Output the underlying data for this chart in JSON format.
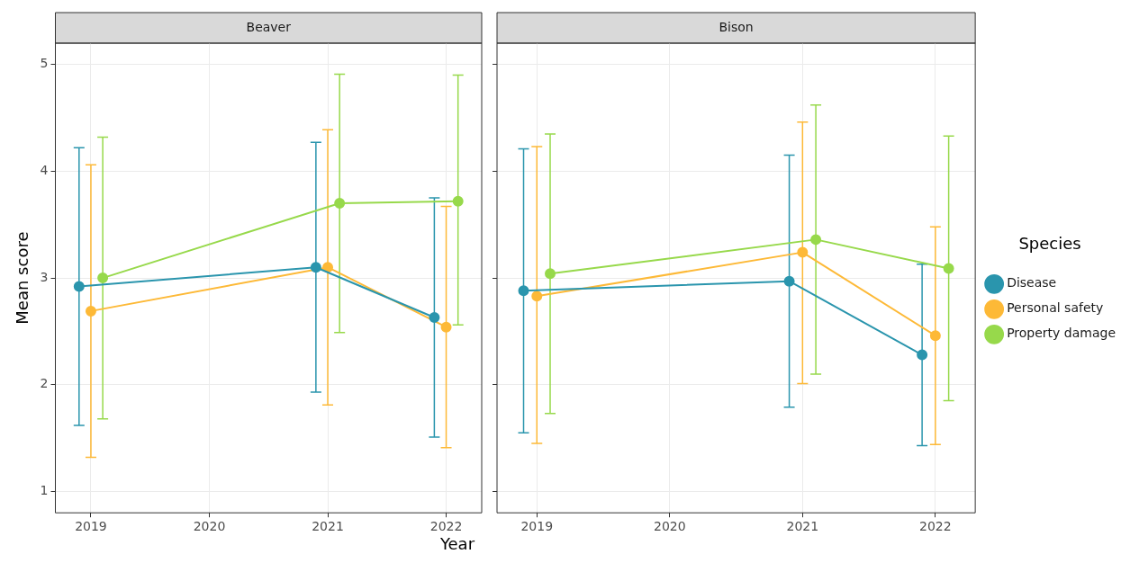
{
  "chart_data": [
    {
      "type": "line",
      "title": "Beaver",
      "xlabel": "Year",
      "ylabel": "Mean score",
      "xlim": [
        2018.7,
        2022.3
      ],
      "xticks": [
        2019,
        2020,
        2021,
        2022
      ],
      "ylim": [
        0.8,
        5.2
      ],
      "yticks": [
        1,
        2,
        3,
        4,
        5
      ],
      "grid": true,
      "marker": "circle",
      "series": [
        {
          "color": "#2a95ad",
          "x": [
            2018.9,
            2020.9,
            2021.9
          ],
          "values": [
            2.92,
            3.1,
            2.63
          ],
          "errors": [
            [
              1.62,
              4.22
            ],
            [
              1.93,
              4.27
            ],
            [
              1.51,
              3.75
            ]
          ]
        },
        {
          "color": "#fdb937",
          "x": [
            2019,
            2021,
            2022
          ],
          "values": [
            2.69,
            3.1,
            2.54
          ],
          "errors": [
            [
              1.32,
              4.06
            ],
            [
              1.81,
              4.39
            ],
            [
              1.41,
              3.67
            ]
          ]
        },
        {
          "color": "#97d94b",
          "x": [
            2019.1,
            2021.1,
            2022.1
          ],
          "values": [
            3.0,
            3.7,
            3.72
          ],
          "errors": [
            [
              1.68,
              4.32
            ],
            [
              2.49,
              4.91
            ],
            [
              2.56,
              4.9
            ]
          ]
        }
      ]
    },
    {
      "type": "line",
      "title": "Bison",
      "xlim": [
        2018.7,
        2022.3
      ],
      "xticks": [
        2019,
        2020,
        2021,
        2022
      ],
      "ylim": [
        0.8,
        5.2
      ],
      "yticks": [
        1,
        2,
        3,
        4,
        5
      ],
      "grid": true,
      "marker": "circle",
      "tick_labels": "x",
      "legend": "right",
      "legend_title": "Species",
      "series": [
        {
          "name": "Disease",
          "color": "#2a95ad",
          "x": [
            2018.9,
            2020.9,
            2021.9
          ],
          "values": [
            2.88,
            2.97,
            2.28
          ],
          "errors": [
            [
              1.55,
              4.21
            ],
            [
              1.79,
              4.15
            ],
            [
              1.43,
              3.13
            ]
          ]
        },
        {
          "name": "Personal safety",
          "color": "#fdb937",
          "x": [
            2019,
            2021,
            2022
          ],
          "values": [
            2.83,
            3.24,
            2.46
          ],
          "errors": [
            [
              1.45,
              4.23
            ],
            [
              2.01,
              4.46
            ],
            [
              1.44,
              3.48
            ]
          ]
        },
        {
          "name": "Property damage",
          "color": "#97d94b",
          "x": [
            2019.1,
            2021.1,
            2022.1
          ],
          "values": [
            3.04,
            3.36,
            3.09
          ],
          "errors": [
            [
              1.73,
              4.35
            ],
            [
              2.1,
              4.62
            ],
            [
              1.85,
              4.33
            ]
          ]
        }
      ]
    }
  ]
}
